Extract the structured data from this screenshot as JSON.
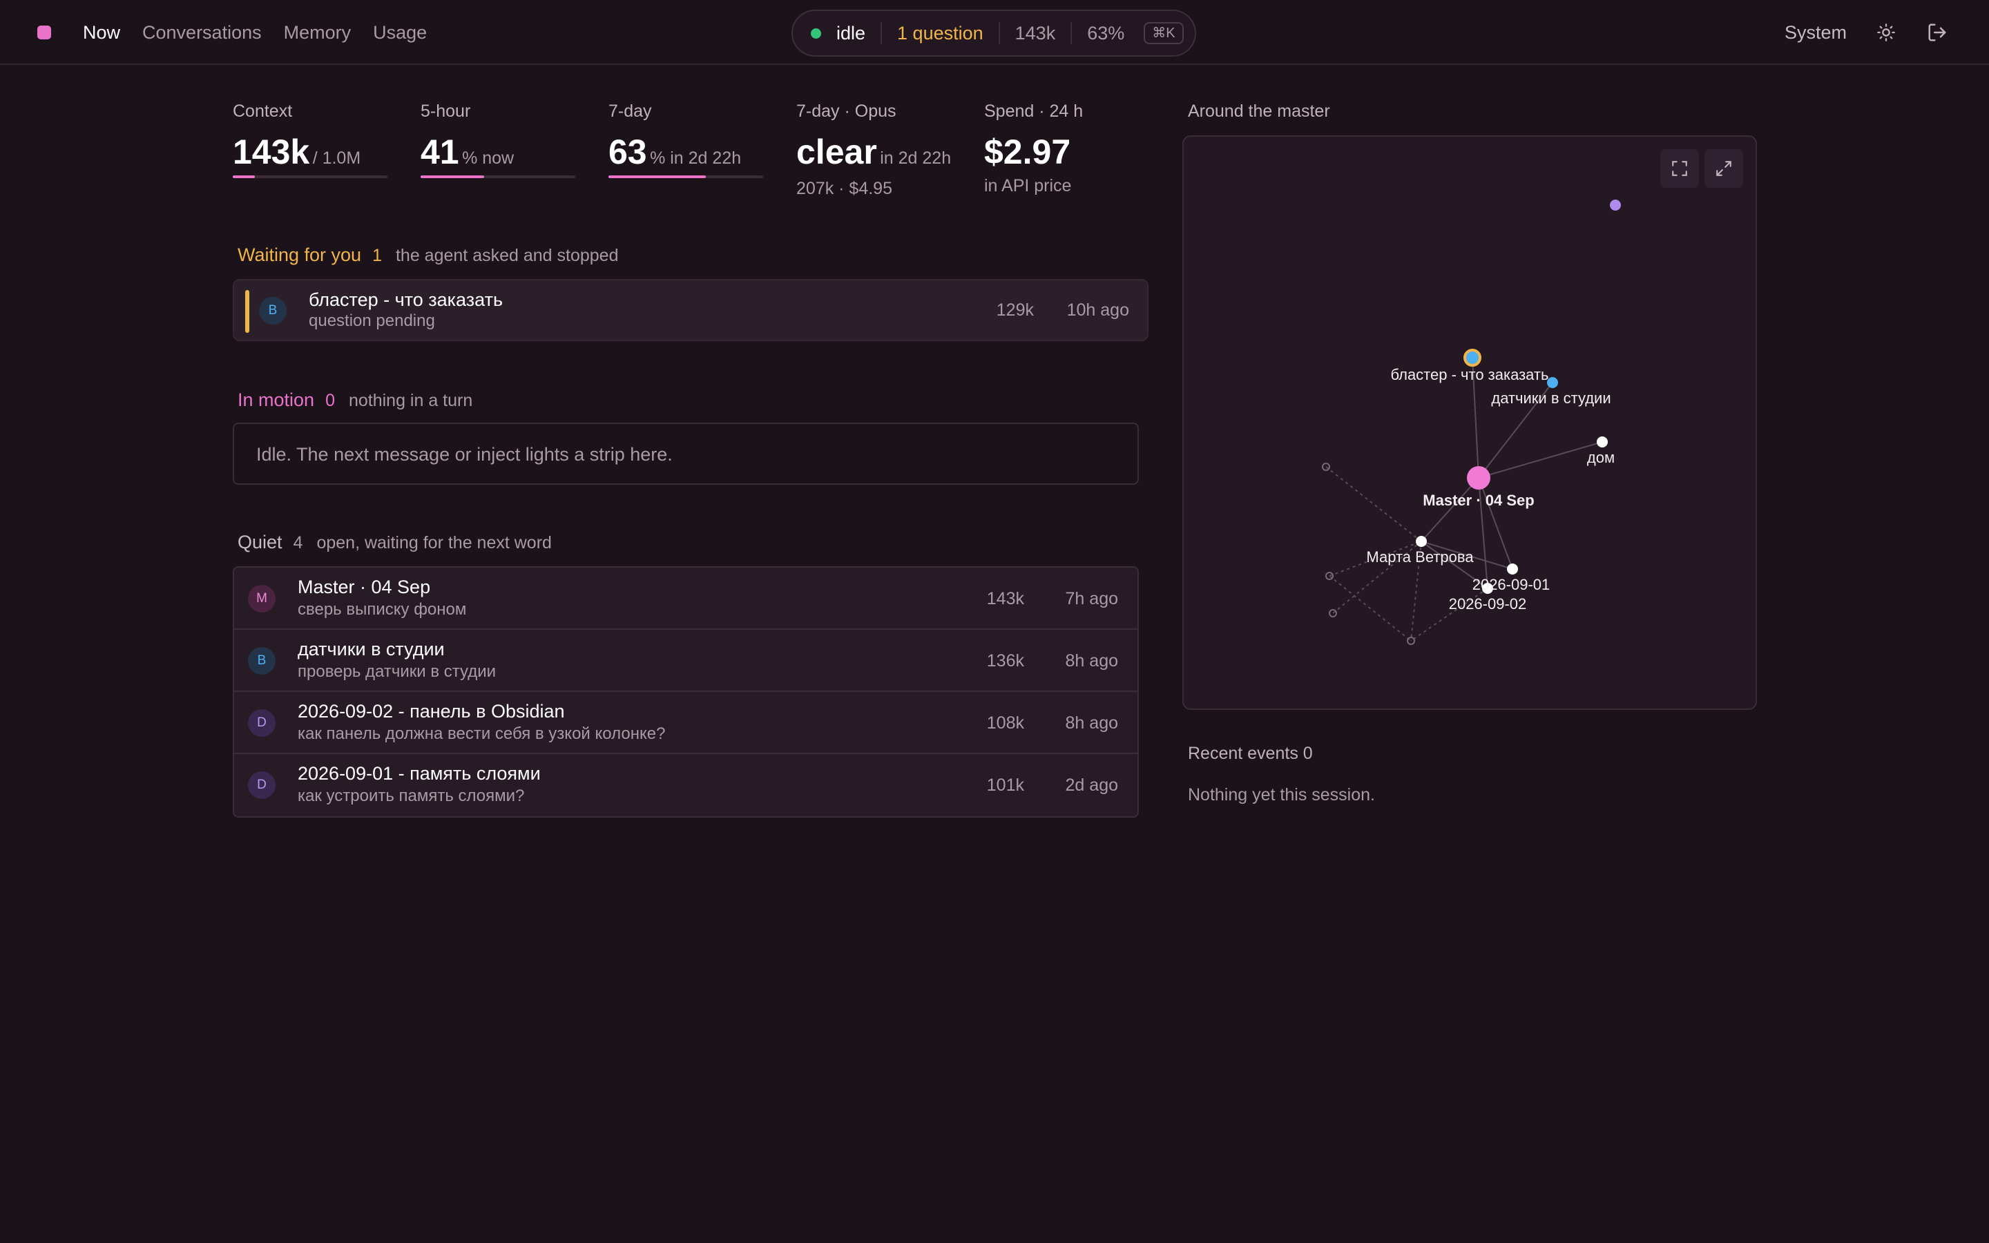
{
  "nav": {
    "items": [
      "Now",
      "Conversations",
      "Memory",
      "Usage"
    ],
    "active": "Now"
  },
  "status": {
    "state": "idle",
    "questions": "1 question",
    "tokens": "143k",
    "percent": "63%",
    "shortcut": "⌘K"
  },
  "topright": {
    "theme_label": "System",
    "theme_icon": "sun-icon",
    "logout_icon": "logout-icon"
  },
  "stats": {
    "context": {
      "label": "Context",
      "value": "143k",
      "unit": "/ 1.0M",
      "fill": 0.143
    },
    "five_hour": {
      "label": "5-hour",
      "value": "41",
      "unit": "% now",
      "fill": 0.41
    },
    "seven_day": {
      "label": "7-day",
      "value": "63",
      "unit": "% in 2d 22h",
      "fill": 0.63
    },
    "opus": {
      "label": "7-day · Opus",
      "value": "clear",
      "unit": "in 2d 22h",
      "sub": "207k · $4.95"
    },
    "spend": {
      "label": "Spend · 24 h",
      "value": "$2.97",
      "sub": "in API price"
    }
  },
  "waiting": {
    "title": "Waiting for you",
    "count": "1",
    "subtitle": "the agent asked and stopped",
    "items": [
      {
        "avatar": "B",
        "title": "бластер - что заказать",
        "sub": "question pending",
        "tokens": "129k",
        "ago": "10h ago"
      }
    ]
  },
  "motion": {
    "title": "In motion",
    "count": "0",
    "subtitle": "nothing in a turn",
    "empty": "Idle. The next message or inject lights a strip here."
  },
  "quiet": {
    "title": "Quiet",
    "count": "4",
    "subtitle": "open, waiting for the next word",
    "items": [
      {
        "avatar": "M",
        "title": "Master · 04 Sep",
        "sub": "сверь выписку фоном",
        "tokens": "143k",
        "ago": "7h ago"
      },
      {
        "avatar": "B",
        "title": "датчики в студии",
        "sub": "проверь датчики в студии",
        "tokens": "136k",
        "ago": "8h ago"
      },
      {
        "avatar": "D",
        "title": "2026-09-02 - панель в Obsidian",
        "sub": "как панель должна вести себя в узкой колонке?",
        "tokens": "108k",
        "ago": "8h ago"
      },
      {
        "avatar": "D",
        "title": "2026-09-01 - память слоями",
        "sub": "как устроить память слоями?",
        "tokens": "101k",
        "ago": "2d ago"
      }
    ]
  },
  "graph": {
    "title": "Around the master",
    "nodes": {
      "master": "Master · 04 Sep",
      "blaster": "бластер - что заказать",
      "sensors": "датчики в студии",
      "home": "дом",
      "marta": "Марта Ветрова",
      "d0901": "2026-09-01",
      "d0902": "2026-09-02"
    },
    "colors": {
      "master": "#f07ad4",
      "question": "#f0b44a",
      "sensor": "#4db0f0",
      "outlier": "#b08af0",
      "node": "#ffffff"
    }
  },
  "recent": {
    "title": "Recent events",
    "count": "0",
    "empty": "Nothing yet this session."
  },
  "colors": {
    "accent": "#e873c9",
    "waiting": "#f0b44a",
    "idle_dot": "#35c27a",
    "background": "#1c1219"
  }
}
